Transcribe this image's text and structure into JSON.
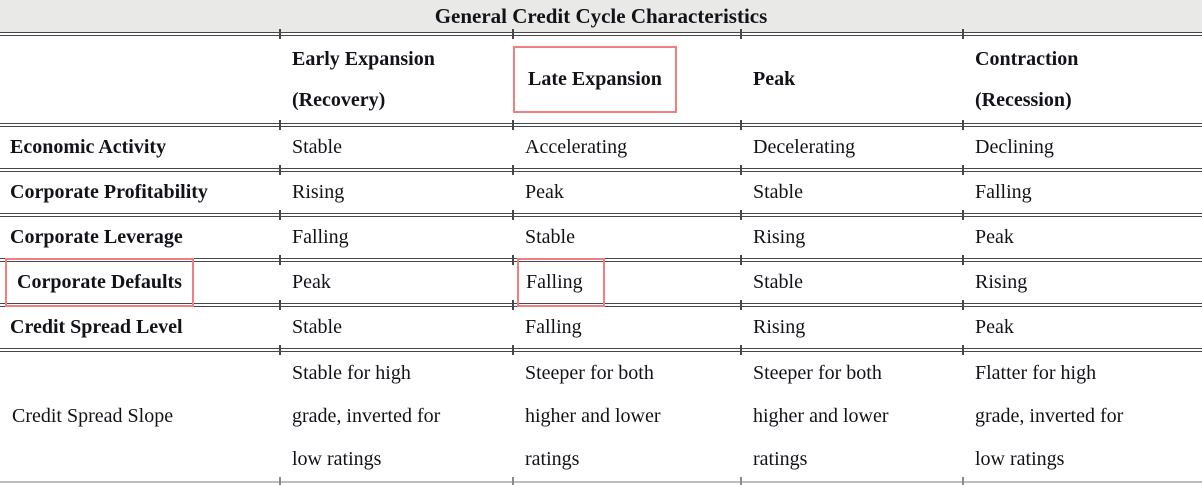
{
  "colors": {
    "highlight_border": "#f08080",
    "title_background": "#e9e9e8",
    "rule_line": "#47474a"
  },
  "table": {
    "title": "General Credit Cycle Characteristics",
    "column_headers": [
      {
        "lines": [
          "Early Expansion",
          "(Recovery)"
        ],
        "highlighted": false
      },
      {
        "lines": [
          "Late Expansion"
        ],
        "highlighted": true
      },
      {
        "lines": [
          "Peak"
        ],
        "highlighted": false
      },
      {
        "lines": [
          "Contraction",
          "(Recession)"
        ],
        "highlighted": false
      }
    ],
    "rows": [
      {
        "label": "Economic Activity",
        "cells": [
          "Stable",
          "Accelerating",
          "Decelerating",
          "Declining"
        ]
      },
      {
        "label": "Corporate Profitability",
        "cells": [
          "Rising",
          "Peak",
          "Stable",
          "Falling"
        ]
      },
      {
        "label": "Corporate Leverage",
        "cells": [
          "Falling",
          "Stable",
          "Rising",
          "Peak"
        ]
      },
      {
        "label": "Corporate Defaults",
        "label_highlighted": true,
        "highlighted_cell_index": 1,
        "cells": [
          "Peak",
          "Falling",
          "Stable",
          "Rising"
        ]
      },
      {
        "label": "Credit Spread Level",
        "cells": [
          "Stable",
          "Falling",
          "Rising",
          "Peak"
        ]
      },
      {
        "label": "Credit Spread Slope",
        "cells": [
          "Stable for high\ngrade, inverted for\nlow ratings",
          "Steeper for both\nhigher and lower\nratings",
          "Steeper for both\nhigher and lower\nratings",
          "Flatter for high\ngrade, inverted for\nlow ratings"
        ]
      }
    ]
  }
}
